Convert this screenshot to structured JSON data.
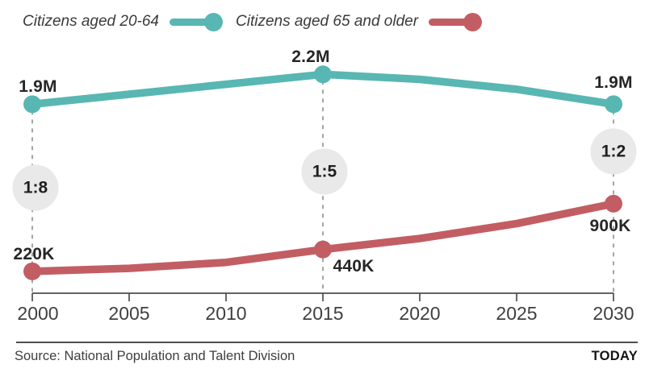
{
  "legend": {
    "items": [
      {
        "label": "Citizens aged 20-64",
        "color": "#58b7b2"
      },
      {
        "label": "Citizens aged 65 and older",
        "color": "#c25e63"
      }
    ]
  },
  "chart_data": {
    "type": "line",
    "x": [
      2000,
      2005,
      2010,
      2015,
      2020,
      2025,
      2030
    ],
    "xticks": [
      "2000",
      "2005",
      "2010",
      "2015",
      "2020",
      "2025",
      "2030"
    ],
    "xlabel": "",
    "ylabel": "",
    "ylim": [
      0,
      2400000
    ],
    "grid": false,
    "legend_position": "top",
    "series": [
      {
        "name": "Citizens aged 20-64",
        "color": "#58b7b2",
        "values": [
          1900000,
          2000000,
          2100000,
          2200000,
          2150000,
          2050000,
          1900000
        ],
        "labeled_points": [
          {
            "x": 2000,
            "value": 1900000,
            "label": "1.9M"
          },
          {
            "x": 2015,
            "value": 2200000,
            "label": "2.2M"
          },
          {
            "x": 2030,
            "value": 1900000,
            "label": "1.9M"
          }
        ]
      },
      {
        "name": "Citizens aged 65 and older",
        "color": "#c25e63",
        "values": [
          220000,
          250000,
          310000,
          440000,
          550000,
          700000,
          900000
        ],
        "labeled_points": [
          {
            "x": 2000,
            "value": 220000,
            "label": "220K"
          },
          {
            "x": 2015,
            "value": 440000,
            "label": "440K"
          },
          {
            "x": 2030,
            "value": 900000,
            "label": "900K"
          }
        ]
      }
    ],
    "annotations": [
      {
        "x": 2000,
        "label": "1:8"
      },
      {
        "x": 2015,
        "label": "1:5"
      },
      {
        "x": 2030,
        "label": "1:2"
      }
    ]
  },
  "colors": {
    "badge_bg": "#e9e9e9",
    "dash": "#9b9b9b",
    "axis": "#4d4d4d"
  },
  "footer": {
    "source": "Source: National Population and Talent Division",
    "brand": "TODAY"
  }
}
